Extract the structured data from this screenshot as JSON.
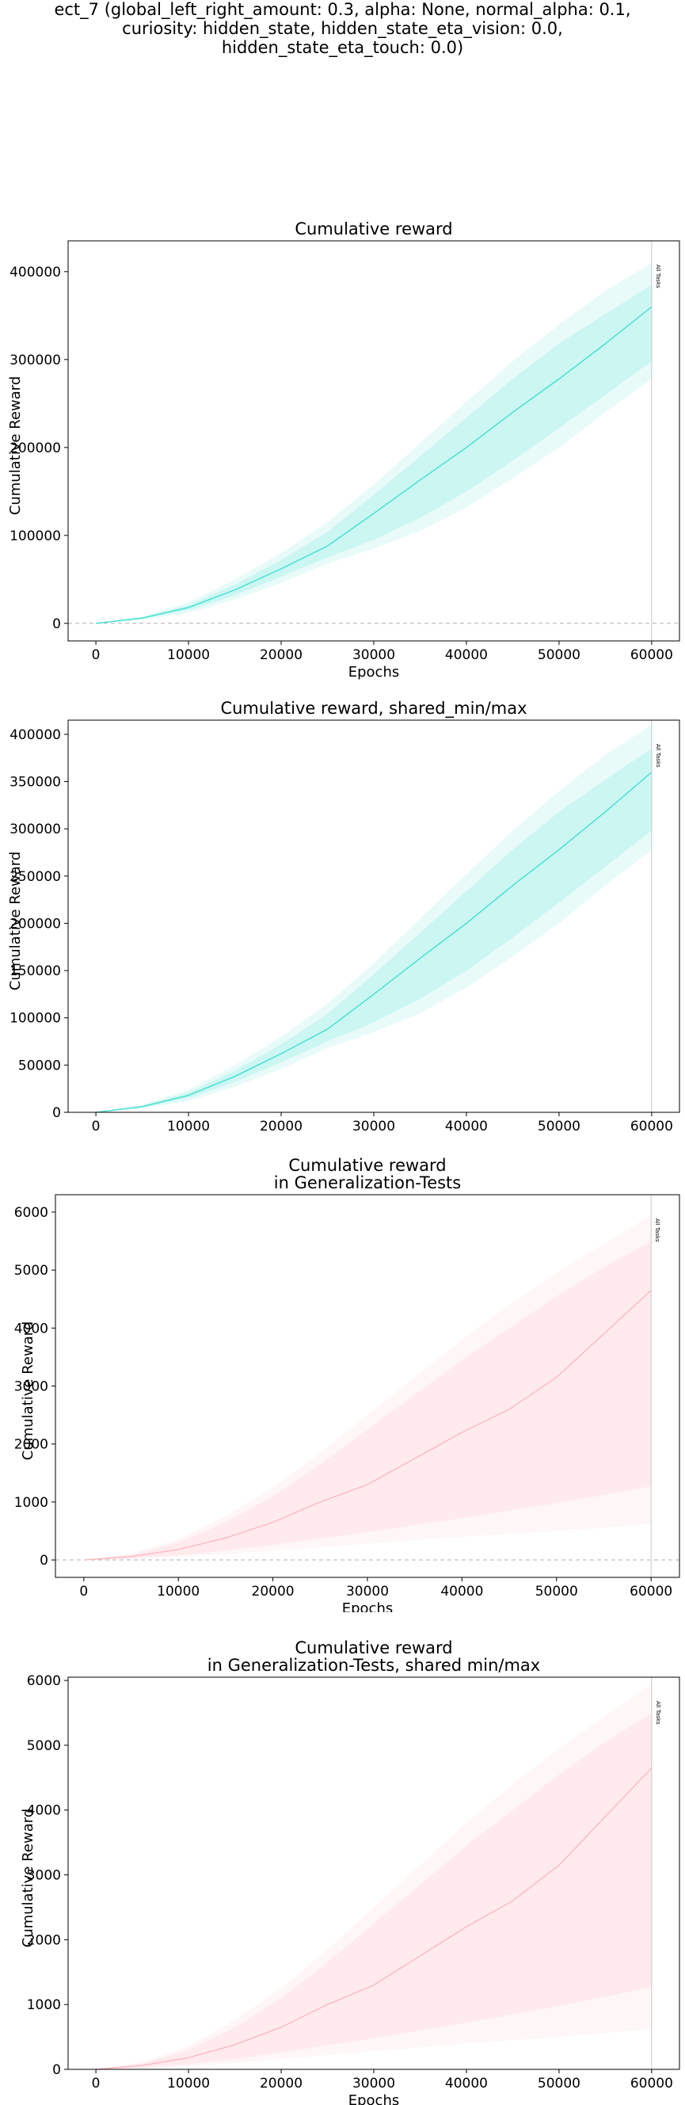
{
  "figure": {
    "suptitle_lines": [
      "ect_7 (global_left_right_amount: 0.3, alpha: None, normal_alpha: 0.1,",
      "curiosity: hidden_state, hidden_state_eta_vision: 0.0,",
      "hidden_state_eta_touch: 0.0)"
    ]
  },
  "chart_data": [
    {
      "type": "line",
      "title_lines": [
        "Cumulative reward"
      ],
      "xlabel": "Epochs",
      "ylabel": "Cumulative Reward",
      "xlim": [
        -3000,
        63000
      ],
      "ylim": [
        -20000,
        435000
      ],
      "xticks": [
        0,
        10000,
        20000,
        30000,
        40000,
        50000,
        60000
      ],
      "yticks": [
        0,
        100000,
        200000,
        300000,
        400000
      ],
      "zero_line": true,
      "color": "#40e0d0",
      "vline": {
        "x": 60000,
        "label": "All Tasks"
      },
      "x": [
        0,
        5000,
        10000,
        15000,
        20000,
        25000,
        30000,
        35000,
        40000,
        45000,
        50000,
        55000,
        60000
      ],
      "series": [
        {
          "values": [
            0,
            6000,
            18000,
            38000,
            62000,
            88000,
            125000,
            163000,
            200000,
            240000,
            278000,
            318000,
            360000
          ]
        }
      ],
      "band_inner": {
        "upper": [
          0,
          7000,
          21000,
          44000,
          72000,
          104000,
          146000,
          190000,
          234000,
          278000,
          318000,
          352000,
          385000
        ],
        "lower": [
          0,
          5000,
          15000,
          32000,
          53000,
          75000,
          95000,
          120000,
          150000,
          185000,
          222000,
          260000,
          298000
        ]
      },
      "band_outer": {
        "upper": [
          0,
          8000,
          24000,
          50000,
          80000,
          115000,
          158000,
          205000,
          252000,
          298000,
          340000,
          378000,
          410000
        ],
        "lower": [
          0,
          4000,
          12000,
          27000,
          46000,
          68000,
          85000,
          105000,
          132000,
          165000,
          200000,
          240000,
          278000
        ]
      }
    },
    {
      "type": "line",
      "title_lines": [
        "Cumulative reward, shared_min/max"
      ],
      "xlabel": "Epochs",
      "ylabel": "Cumulative Reward",
      "xlim": [
        -3000,
        63000
      ],
      "ylim": [
        0,
        415000
      ],
      "xticks": [
        0,
        10000,
        20000,
        30000,
        40000,
        50000,
        60000
      ],
      "yticks": [
        0,
        50000,
        100000,
        150000,
        200000,
        250000,
        300000,
        350000,
        400000
      ],
      "zero_line": false,
      "color": "#40e0d0",
      "vline": {
        "x": 60000,
        "label": "All Tasks"
      },
      "x": [
        0,
        5000,
        10000,
        15000,
        20000,
        25000,
        30000,
        35000,
        40000,
        45000,
        50000,
        55000,
        60000
      ],
      "series": [
        {
          "values": [
            0,
            6000,
            18000,
            38000,
            62000,
            88000,
            125000,
            163000,
            200000,
            240000,
            278000,
            318000,
            360000
          ]
        }
      ],
      "band_inner": {
        "upper": [
          0,
          7000,
          21000,
          44000,
          72000,
          104000,
          146000,
          190000,
          234000,
          278000,
          318000,
          352000,
          385000
        ],
        "lower": [
          0,
          5000,
          15000,
          32000,
          53000,
          75000,
          95000,
          120000,
          150000,
          185000,
          222000,
          260000,
          298000
        ]
      },
      "band_outer": {
        "upper": [
          0,
          8000,
          24000,
          50000,
          80000,
          115000,
          158000,
          205000,
          252000,
          298000,
          340000,
          378000,
          410000
        ],
        "lower": [
          0,
          4000,
          12000,
          27000,
          46000,
          68000,
          85000,
          105000,
          132000,
          165000,
          200000,
          240000,
          278000
        ]
      }
    },
    {
      "type": "line",
      "title_lines": [
        "Cumulative reward",
        "in Generalization-Tests"
      ],
      "xlabel": "Epochs",
      "ylabel": "Cumulative Reward",
      "xlim": [
        -3000,
        63000
      ],
      "ylim": [
        -300,
        6300
      ],
      "xticks": [
        0,
        10000,
        20000,
        30000,
        40000,
        50000,
        60000
      ],
      "yticks": [
        0,
        1000,
        2000,
        3000,
        4000,
        5000,
        6000
      ],
      "zero_line": true,
      "color": "#ffb6c1",
      "vline": {
        "x": 60000,
        "label": "All Tasks"
      },
      "x": [
        0,
        5000,
        10000,
        15000,
        20000,
        25000,
        30000,
        35000,
        40000,
        45000,
        50000,
        55000,
        60000
      ],
      "series": [
        {
          "values": [
            0,
            60,
            180,
            380,
            650,
            1000,
            1300,
            1750,
            2200,
            2600,
            3150,
            3900,
            4650
          ]
        }
      ],
      "band_inner": {
        "upper": [
          0,
          90,
          300,
          650,
          1100,
          1650,
          2250,
          2850,
          3450,
          4000,
          4550,
          5050,
          5500
        ],
        "lower": [
          0,
          25,
          80,
          160,
          260,
          370,
          480,
          600,
          720,
          850,
          980,
          1120,
          1270
        ]
      },
      "band_outer": {
        "upper": [
          0,
          110,
          360,
          760,
          1250,
          1850,
          2500,
          3150,
          3800,
          4400,
          4950,
          5450,
          5950
        ],
        "lower": [
          0,
          15,
          50,
          100,
          160,
          220,
          280,
          340,
          400,
          450,
          500,
          560,
          620
        ]
      }
    },
    {
      "type": "line",
      "title_lines": [
        "Cumulative reward",
        "in Generalization-Tests, shared min/max"
      ],
      "xlabel": "Epochs",
      "ylabel": "Cumulative Reward",
      "xlim": [
        -3000,
        63000
      ],
      "ylim": [
        0,
        6050
      ],
      "xticks": [
        0,
        10000,
        20000,
        30000,
        40000,
        50000,
        60000
      ],
      "yticks": [
        0,
        1000,
        2000,
        3000,
        4000,
        5000,
        6000
      ],
      "zero_line": false,
      "color": "#ffb6c1",
      "vline": {
        "x": 60000,
        "label": "All Tasks"
      },
      "x": [
        0,
        5000,
        10000,
        15000,
        20000,
        25000,
        30000,
        35000,
        40000,
        45000,
        50000,
        55000,
        60000
      ],
      "series": [
        {
          "values": [
            0,
            60,
            180,
            380,
            650,
            1000,
            1300,
            1750,
            2200,
            2600,
            3150,
            3900,
            4650
          ]
        }
      ],
      "band_inner": {
        "upper": [
          0,
          90,
          300,
          650,
          1100,
          1650,
          2250,
          2850,
          3450,
          4000,
          4550,
          5050,
          5500
        ],
        "lower": [
          0,
          25,
          80,
          160,
          260,
          370,
          480,
          600,
          720,
          850,
          980,
          1120,
          1270
        ]
      },
      "band_outer": {
        "upper": [
          0,
          110,
          360,
          760,
          1250,
          1850,
          2500,
          3150,
          3800,
          4400,
          4950,
          5450,
          5950
        ],
        "lower": [
          0,
          15,
          50,
          100,
          160,
          220,
          280,
          340,
          400,
          450,
          500,
          560,
          620
        ]
      }
    }
  ]
}
